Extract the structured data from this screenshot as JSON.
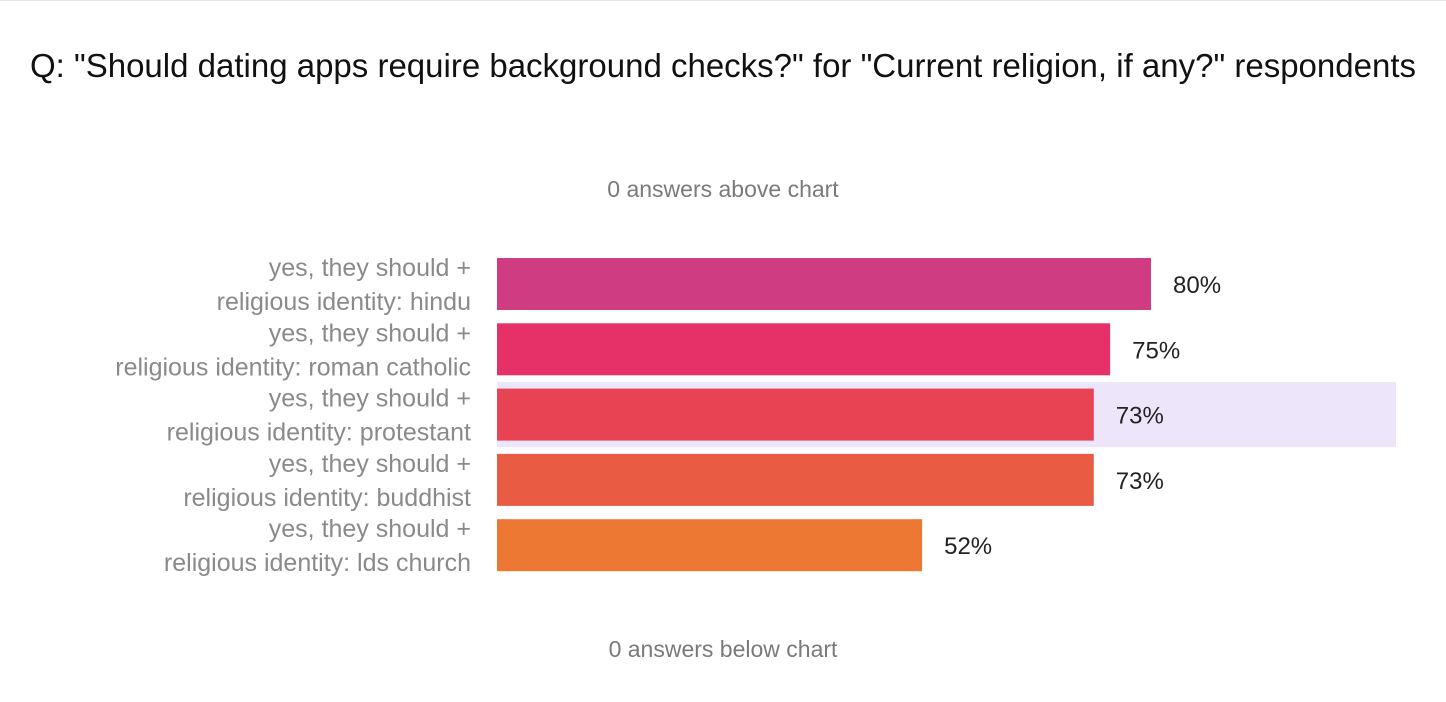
{
  "title": "Q: \"Should dating apps require background checks?\" for \"Current religion, if any?\" respondents",
  "notes": {
    "above": "0 answers above chart",
    "below": "0 answers below chart"
  },
  "chart_data": {
    "type": "bar",
    "orientation": "horizontal",
    "categories": [
      [
        "yes, they should +",
        "religious identity: hindu"
      ],
      [
        "yes, they should +",
        "religious identity: roman catholic"
      ],
      [
        "yes, they should +",
        "religious identity: protestant"
      ],
      [
        "yes, they should +",
        "religious identity: buddhist"
      ],
      [
        "yes, they should +",
        "religious identity: lds church"
      ]
    ],
    "values": [
      80,
      75,
      73,
      73,
      52
    ],
    "value_labels": [
      "80%",
      "75%",
      "73%",
      "73%",
      "52%"
    ],
    "colors": [
      "#d03c82",
      "#e63068",
      "#e84352",
      "#ea5b44",
      "#ed7834"
    ],
    "highlighted_index": 2,
    "highlight_color": "#ede6fb",
    "xlim": [
      0,
      100
    ],
    "grid": false,
    "legend": "none"
  }
}
